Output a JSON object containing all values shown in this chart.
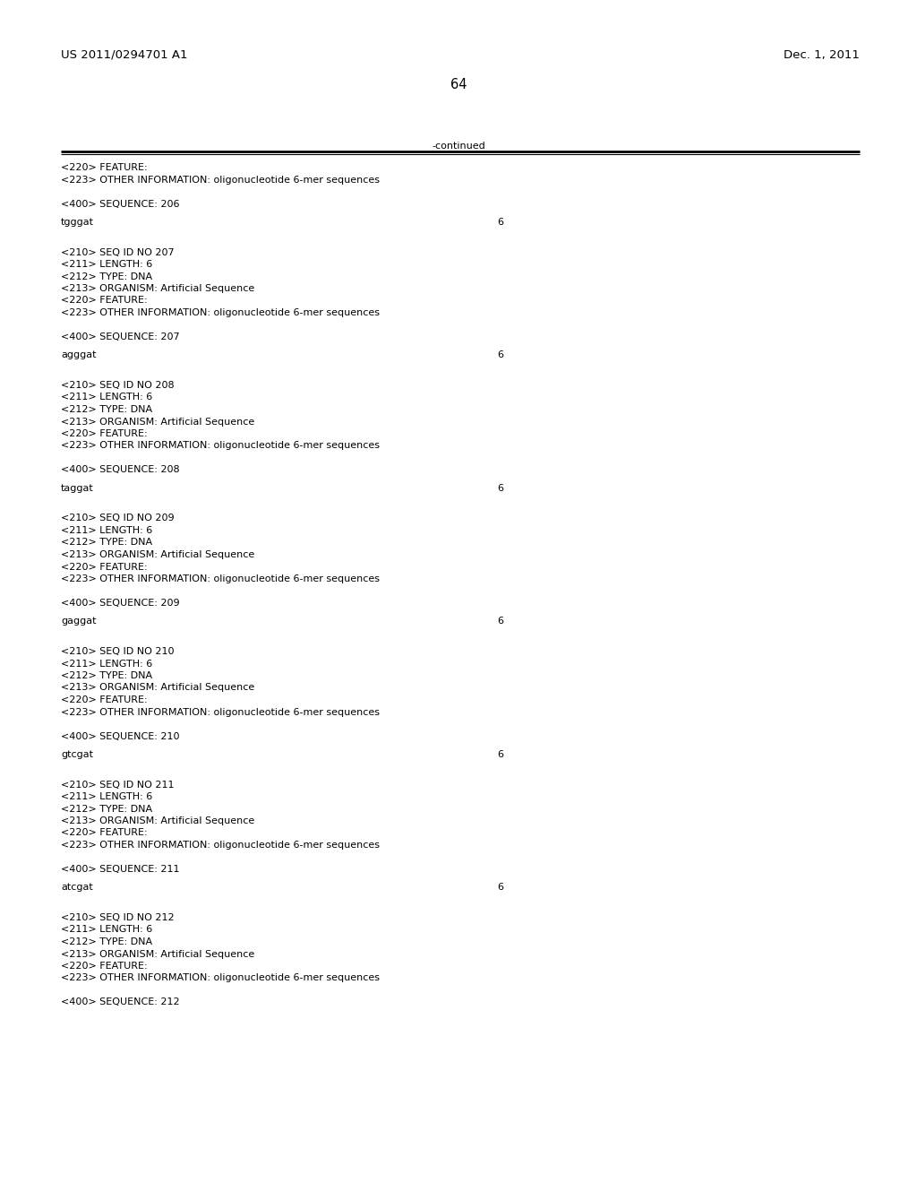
{
  "background_color": "#ffffff",
  "page_number": "64",
  "header_left": "US 2011/0294701 A1",
  "header_right": "Dec. 1, 2011",
  "continued_label": "-continued",
  "mono_font": "Courier New",
  "sans_font": "DejaVu Sans",
  "content_blocks": [
    {
      "seq_num": "206",
      "pre_lines": [
        "<220> FEATURE:",
        "<223> OTHER INFORMATION: oligonucleotide 6-mer sequences"
      ],
      "sequence_line": "tgggat",
      "seq_length": "6"
    },
    {
      "seq_num": "207",
      "pre_lines": [
        "<210> SEQ ID NO 207",
        "<211> LENGTH: 6",
        "<212> TYPE: DNA",
        "<213> ORGANISM: Artificial Sequence",
        "<220> FEATURE:",
        "<223> OTHER INFORMATION: oligonucleotide 6-mer sequences"
      ],
      "sequence_line": "agggat",
      "seq_length": "6"
    },
    {
      "seq_num": "208",
      "pre_lines": [
        "<210> SEQ ID NO 208",
        "<211> LENGTH: 6",
        "<212> TYPE: DNA",
        "<213> ORGANISM: Artificial Sequence",
        "<220> FEATURE:",
        "<223> OTHER INFORMATION: oligonucleotide 6-mer sequences"
      ],
      "sequence_line": "taggat",
      "seq_length": "6"
    },
    {
      "seq_num": "209",
      "pre_lines": [
        "<210> SEQ ID NO 209",
        "<211> LENGTH: 6",
        "<212> TYPE: DNA",
        "<213> ORGANISM: Artificial Sequence",
        "<220> FEATURE:",
        "<223> OTHER INFORMATION: oligonucleotide 6-mer sequences"
      ],
      "sequence_line": "gaggat",
      "seq_length": "6"
    },
    {
      "seq_num": "210",
      "pre_lines": [
        "<210> SEQ ID NO 210",
        "<211> LENGTH: 6",
        "<212> TYPE: DNA",
        "<213> ORGANISM: Artificial Sequence",
        "<220> FEATURE:",
        "<223> OTHER INFORMATION: oligonucleotide 6-mer sequences"
      ],
      "sequence_line": "gtcgat",
      "seq_length": "6"
    },
    {
      "seq_num": "211",
      "pre_lines": [
        "<210> SEQ ID NO 211",
        "<211> LENGTH: 6",
        "<212> TYPE: DNA",
        "<213> ORGANISM: Artificial Sequence",
        "<220> FEATURE:",
        "<223> OTHER INFORMATION: oligonucleotide 6-mer sequences"
      ],
      "sequence_line": "atcgat",
      "seq_length": "6"
    },
    {
      "seq_num": "212",
      "pre_lines": [
        "<210> SEQ ID NO 212",
        "<211> LENGTH: 6",
        "<212> TYPE: DNA",
        "<213> ORGANISM: Artificial Sequence",
        "<220> FEATURE:",
        "<223> OTHER INFORMATION: oligonucleotide 6-mer sequences"
      ],
      "sequence_line": null,
      "seq_length": "6"
    }
  ]
}
